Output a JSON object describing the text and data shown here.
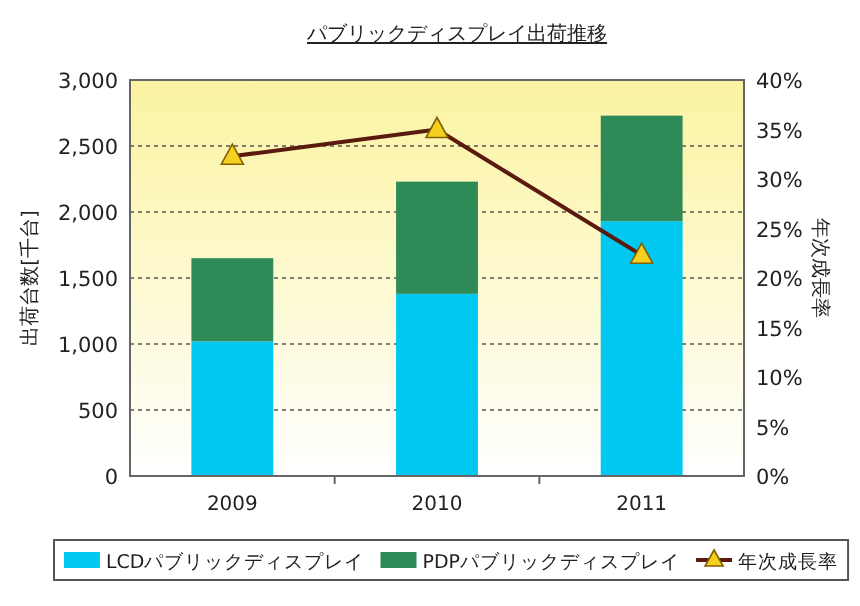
{
  "chart_data": {
    "type": "bar",
    "title": "パブリックディスプレイ出荷推移",
    "ylabel": "出荷台数[千台]",
    "y2label": "年次成長率",
    "categories": [
      "2009",
      "2010",
      "2011"
    ],
    "stacked": true,
    "series": [
      {
        "name": "LCDパブリックディスプレイ",
        "color": "#00c8f0",
        "values": [
          1020,
          1380,
          1930
        ]
      },
      {
        "name": "PDPパブリックディスプレイ",
        "color": "#2e8b57",
        "values": [
          630,
          850,
          800
        ]
      },
      {
        "name": "年次成長率",
        "type": "line",
        "axis": "y2",
        "color": "#5a1a10",
        "marker": "triangle",
        "values": [
          32.3,
          35.0,
          22.3
        ]
      }
    ],
    "ylim": [
      0,
      3000
    ],
    "yticks": [
      {
        "value": 0,
        "label": "0"
      },
      {
        "value": 500,
        "label": "500"
      },
      {
        "value": 1000,
        "label": "1,000"
      },
      {
        "value": 1500,
        "label": "1,500"
      },
      {
        "value": 2000,
        "label": "2,000"
      },
      {
        "value": 2500,
        "label": "2,500"
      },
      {
        "value": 3000,
        "label": "3,000"
      }
    ],
    "y2lim": [
      0,
      40
    ],
    "y2ticks": [
      {
        "value": 0,
        "label": "0%"
      },
      {
        "value": 5,
        "label": "5%"
      },
      {
        "value": 10,
        "label": "10%"
      },
      {
        "value": 15,
        "label": "15%"
      },
      {
        "value": 20,
        "label": "20%"
      },
      {
        "value": 25,
        "label": "25%"
      },
      {
        "value": 30,
        "label": "30%"
      },
      {
        "value": 35,
        "label": "35%"
      },
      {
        "value": 40,
        "label": "40%"
      }
    ],
    "grid": "y",
    "legend": "bottom"
  }
}
